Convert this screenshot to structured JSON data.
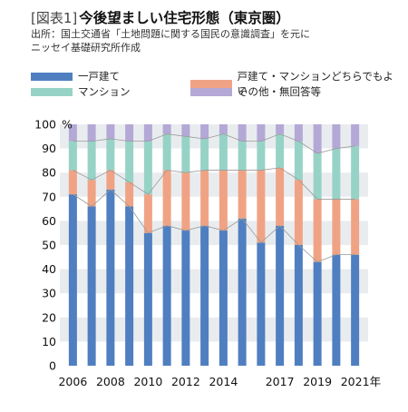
{
  "header": {
    "tag": "[図表1]",
    "title": "今後望ましい住宅形態（東京圏）",
    "source_line1": "出所：国土交通省「土地問題に関する国民の意識調査」を元に",
    "source_line2": "ニッセイ基礎研究所作成"
  },
  "colors": {
    "detached": "#4f7fc0",
    "detached_or_condo": "#f0a384",
    "condo": "#96d3c6",
    "other": "#b4a8d6",
    "band": "#e9ecef",
    "connector": "#9a9a9a"
  },
  "chart_data": {
    "type": "bar",
    "stacked": true,
    "categories": [
      "2006",
      "2007",
      "2008",
      "2009",
      "2010",
      "2011",
      "2012",
      "2013",
      "2014",
      "2015",
      "2016",
      "2017",
      "2018",
      "2019",
      "2020",
      "2021"
    ],
    "x_tick_labels": [
      "2006",
      "2008",
      "2010",
      "2012",
      "2014",
      "2017",
      "2019",
      "2021"
    ],
    "x_unit": "年",
    "ylim": [
      0,
      100
    ],
    "y_ticks": [
      0,
      10,
      20,
      30,
      40,
      50,
      60,
      70,
      80,
      90,
      100
    ],
    "y_unit": "%",
    "series": [
      {
        "name": "一戸建て",
        "color_key": "detached",
        "values": [
          71,
          66,
          73,
          66,
          55,
          58,
          56,
          58,
          56,
          61,
          51,
          58,
          50,
          43,
          46,
          46
        ]
      },
      {
        "name": "戸建て・マンションどちらでもよい",
        "color_key": "detached_or_condo",
        "values": [
          10,
          11,
          8,
          10,
          16,
          23,
          24,
          23,
          25,
          20,
          30,
          24,
          27,
          26,
          23,
          23
        ]
      },
      {
        "name": "マンション",
        "color_key": "condo",
        "values": [
          12,
          16,
          13,
          17,
          22,
          15,
          15,
          13,
          15,
          12,
          12,
          14,
          16,
          19,
          21,
          22
        ]
      },
      {
        "name": "その他・無回答等",
        "color_key": "other",
        "values": [
          7,
          7,
          6,
          7,
          7,
          4,
          5,
          6,
          4,
          7,
          7,
          4,
          7,
          12,
          10,
          9
        ]
      }
    ]
  }
}
